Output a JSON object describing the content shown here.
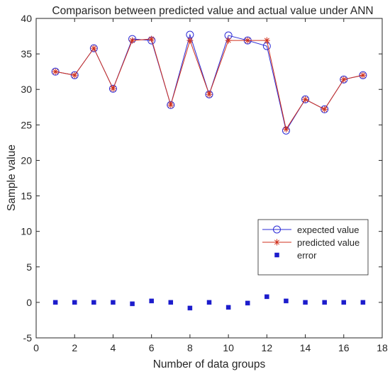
{
  "chart_data": {
    "type": "line",
    "title": "Comparison between predicted value and actual value under ANN",
    "xlabel": "Number of data groups",
    "ylabel": "Sample value",
    "xlim": [
      0,
      18
    ],
    "ylim": [
      -5,
      40
    ],
    "xticks": [
      0,
      2,
      4,
      6,
      8,
      10,
      12,
      14,
      16,
      18
    ],
    "yticks": [
      -5,
      0,
      5,
      10,
      15,
      20,
      25,
      30,
      35,
      40
    ],
    "grid": false,
    "legend_position": "lower-right",
    "x": [
      1,
      2,
      3,
      4,
      5,
      6,
      7,
      8,
      9,
      10,
      11,
      12,
      13,
      14,
      15,
      16,
      17
    ],
    "series": [
      {
        "name": "expected value",
        "marker": "circle",
        "color": "#2b2bd6",
        "values": [
          32.5,
          32.0,
          35.8,
          30.1,
          37.1,
          36.9,
          27.8,
          37.7,
          29.3,
          37.6,
          36.9,
          36.1,
          24.2,
          28.6,
          27.2,
          31.4,
          32.0
        ]
      },
      {
        "name": "predicted value",
        "marker": "asterisk",
        "color": "#d0301c",
        "values": [
          32.5,
          32.0,
          35.8,
          30.1,
          36.9,
          37.1,
          27.8,
          36.9,
          29.3,
          36.9,
          36.9,
          36.9,
          24.4,
          28.6,
          27.2,
          31.4,
          32.0
        ]
      },
      {
        "name": "error",
        "marker": "square",
        "line": false,
        "color": "#1c1ccc",
        "values": [
          0.0,
          0.0,
          0.0,
          0.0,
          -0.2,
          0.2,
          0.0,
          -0.8,
          0.0,
          -0.7,
          -0.1,
          0.8,
          0.2,
          0.0,
          0.0,
          0.0,
          0.0
        ]
      }
    ]
  }
}
